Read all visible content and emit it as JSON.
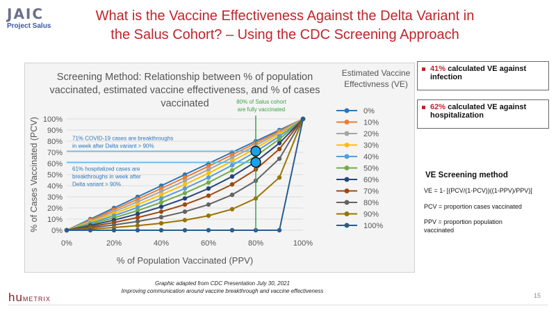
{
  "logo": {
    "mark": "JAIC",
    "sub": "Project Salus"
  },
  "title_lines": [
    "What is the Vaccine Effectiveness Against the Delta Variant in",
    "the Salus Cohort? – Using the CDC Screening Approach"
  ],
  "bullets": [
    {
      "pct": "41%",
      "text": " calculated VE against infection"
    },
    {
      "pct": "62%",
      "text": " calculated VE against hospitalization"
    }
  ],
  "ve_method": {
    "title": "VE Screening method",
    "formula": "VE = 1- [(PCV/(1-PCV))((1-PPV)/PPV)]",
    "pcv_def": "PCV = proportion cases vaccinated",
    "ppv_def": "PPV = proportion population vaccinated"
  },
  "caption": {
    "line1": "Graphic adapted from CDC Presentation July 30, 2021",
    "line2": "Improving communication around vaccine breakthrough and vaccine effectiveness"
  },
  "footer": {
    "brand_hu": "hu",
    "brand_rest": "METRIX",
    "page_number": "15"
  },
  "colors": {
    "title_red": "#c0242b",
    "annotation_blue": "#2e75b6",
    "annotation_green": "#3aa346",
    "marker_fill": "#1ea0e6"
  },
  "chart_data": {
    "type": "line",
    "title_lines": [
      "Screening Method: Relationship between % of population",
      "vaccinated, estimated vaccine effectiveness, and % of cases",
      "vaccinated"
    ],
    "xlabel": "% of Population Vaccinated (PPV)",
    "ylabel": "% of Cases Vaccinated (PCV)",
    "x_ticks": [
      "0%",
      "20%",
      "40%",
      "60%",
      "80%",
      "100%"
    ],
    "y_ticks": [
      "0%",
      "10%",
      "20%",
      "30%",
      "40%",
      "50%",
      "60%",
      "70%",
      "80%",
      "90%",
      "100%"
    ],
    "xlim": [
      0,
      1
    ],
    "ylim": [
      0,
      1
    ],
    "x": [
      0,
      0.1,
      0.2,
      0.3,
      0.4,
      0.5,
      0.6,
      0.7,
      0.8,
      0.9,
      1.0
    ],
    "legend_title_lines": [
      "Estimated Vaccine",
      "Effectivness (VE)"
    ],
    "legend_position": "right",
    "series": [
      {
        "name": "0%",
        "ve": 0.0,
        "color": "#2e75b6"
      },
      {
        "name": "10%",
        "ve": 0.1,
        "color": "#ed7d31"
      },
      {
        "name": "20%",
        "ve": 0.2,
        "color": "#a5a5a5"
      },
      {
        "name": "30%",
        "ve": 0.3,
        "color": "#ffc000"
      },
      {
        "name": "40%",
        "ve": 0.4,
        "color": "#5b9bd5"
      },
      {
        "name": "50%",
        "ve": 0.5,
        "color": "#70ad47"
      },
      {
        "name": "60%",
        "ve": 0.6,
        "color": "#264478"
      },
      {
        "name": "70%",
        "ve": 0.7,
        "color": "#9e480e"
      },
      {
        "name": "80%",
        "ve": 0.8,
        "color": "#636363"
      },
      {
        "name": "90%",
        "ve": 0.9,
        "color": "#997300"
      },
      {
        "name": "100%",
        "ve": 1.0,
        "color": "#255e91"
      }
    ],
    "annotations": {
      "cohort_line_x": 0.8,
      "cohort_text_lines": [
        "80% of Salus cohort",
        "are fully vaccinated"
      ],
      "breakthrough_y": 0.71,
      "breakthrough_text_lines": [
        "71% COVID-19 cases are breakthroughs",
        "in week after Delta variant > 90%"
      ],
      "hospital_y": 0.61,
      "hospital_text_lines": [
        "61% hospitalized cases are",
        "breakthroughs in week after",
        "Delta variant > 90%"
      ]
    }
  }
}
